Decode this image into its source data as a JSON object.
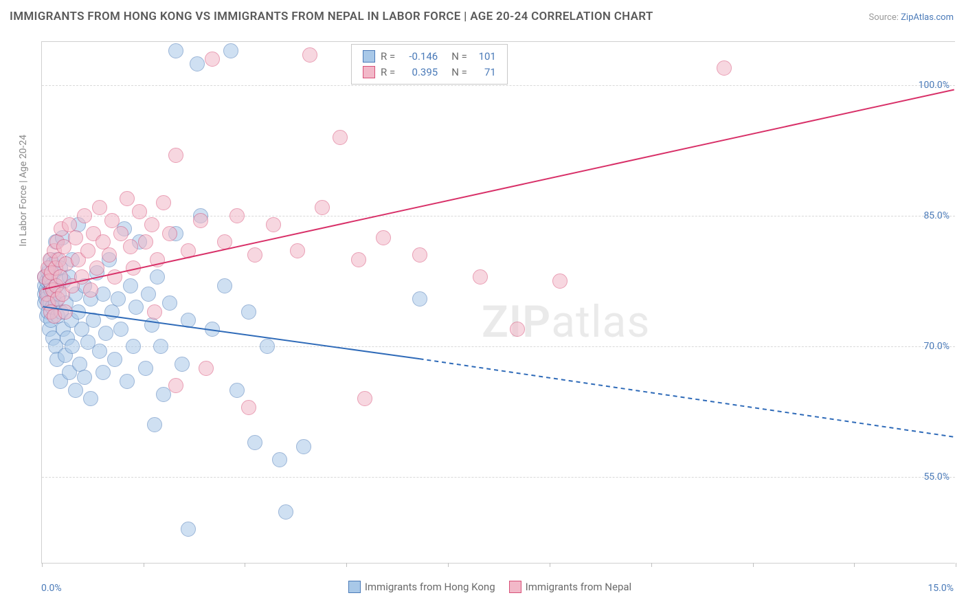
{
  "title": "IMMIGRANTS FROM HONG KONG VS IMMIGRANTS FROM NEPAL IN LABOR FORCE | AGE 20-24 CORRELATION CHART",
  "source_prefix": "Source: ",
  "source_name": "ZipAtlas.com",
  "watermark_bold": "ZIP",
  "watermark_rest": "atlas",
  "chart": {
    "type": "scatter",
    "xlim": [
      0.0,
      15.0
    ],
    "ylim": [
      45.0,
      105.0
    ],
    "x_min_label": "0.0%",
    "x_max_label": "15.0%",
    "y_ticks": [
      55.0,
      70.0,
      85.0,
      100.0
    ],
    "y_tick_labels": [
      "55.0%",
      "70.0%",
      "85.0%",
      "100.0%"
    ],
    "x_tick_positions": [
      0,
      1.67,
      3.33,
      5.0,
      6.67,
      8.33,
      10.0,
      11.67,
      13.33,
      15.0
    ],
    "y_axis_title": "In Labor Force | Age 20-24",
    "background_color": "#ffffff",
    "grid_color": "#d8d8d8",
    "border_color": "#d0d0d0",
    "point_radius": 11,
    "point_border": 1.2,
    "series": [
      {
        "name": "Immigrants from Hong Kong",
        "fill": "#a8c8e8",
        "stroke": "#4a7ab8",
        "opacity": 0.55,
        "R": "-0.146",
        "N": "101",
        "trend": {
          "solid_from": [
            0.0,
            74.5
          ],
          "solid_to": [
            6.2,
            68.5
          ],
          "dash_to": [
            15.0,
            59.5
          ],
          "color": "#2e6ab8",
          "width": 2
        },
        "points": [
          [
            0.05,
            78.0
          ],
          [
            0.05,
            77.0
          ],
          [
            0.05,
            76.0
          ],
          [
            0.05,
            75.0
          ],
          [
            0.07,
            76.5
          ],
          [
            0.07,
            75.5
          ],
          [
            0.08,
            77.5
          ],
          [
            0.08,
            73.5
          ],
          [
            0.1,
            78.5
          ],
          [
            0.1,
            76.0
          ],
          [
            0.1,
            74.0
          ],
          [
            0.12,
            79.0
          ],
          [
            0.12,
            77.5
          ],
          [
            0.12,
            72.0
          ],
          [
            0.13,
            75.0
          ],
          [
            0.14,
            78.0
          ],
          [
            0.15,
            80.0
          ],
          [
            0.15,
            76.5
          ],
          [
            0.15,
            73.0
          ],
          [
            0.16,
            77.0
          ],
          [
            0.17,
            74.5
          ],
          [
            0.18,
            79.5
          ],
          [
            0.18,
            71.0
          ],
          [
            0.2,
            76.0
          ],
          [
            0.2,
            78.5
          ],
          [
            0.22,
            82.0
          ],
          [
            0.22,
            75.0
          ],
          [
            0.23,
            70.0
          ],
          [
            0.24,
            77.0
          ],
          [
            0.25,
            80.0
          ],
          [
            0.25,
            68.5
          ],
          [
            0.26,
            73.5
          ],
          [
            0.28,
            76.0
          ],
          [
            0.3,
            79.0
          ],
          [
            0.3,
            66.0
          ],
          [
            0.32,
            74.0
          ],
          [
            0.34,
            82.5
          ],
          [
            0.35,
            72.0
          ],
          [
            0.36,
            77.5
          ],
          [
            0.38,
            69.0
          ],
          [
            0.4,
            75.0
          ],
          [
            0.42,
            71.0
          ],
          [
            0.45,
            78.0
          ],
          [
            0.45,
            67.0
          ],
          [
            0.48,
            73.0
          ],
          [
            0.5,
            80.0
          ],
          [
            0.5,
            70.0
          ],
          [
            0.55,
            76.0
          ],
          [
            0.55,
            65.0
          ],
          [
            0.6,
            74.0
          ],
          [
            0.6,
            84.0
          ],
          [
            0.62,
            68.0
          ],
          [
            0.65,
            72.0
          ],
          [
            0.7,
            77.0
          ],
          [
            0.7,
            66.5
          ],
          [
            0.75,
            70.5
          ],
          [
            0.8,
            75.5
          ],
          [
            0.8,
            64.0
          ],
          [
            0.85,
            73.0
          ],
          [
            0.9,
            78.5
          ],
          [
            0.95,
            69.5
          ],
          [
            1.0,
            76.0
          ],
          [
            1.0,
            67.0
          ],
          [
            1.05,
            71.5
          ],
          [
            1.1,
            80.0
          ],
          [
            1.15,
            74.0
          ],
          [
            1.2,
            68.5
          ],
          [
            1.25,
            75.5
          ],
          [
            1.3,
            72.0
          ],
          [
            1.35,
            83.5
          ],
          [
            1.4,
            66.0
          ],
          [
            1.45,
            77.0
          ],
          [
            1.5,
            70.0
          ],
          [
            1.55,
            74.5
          ],
          [
            1.6,
            82.0
          ],
          [
            1.7,
            67.5
          ],
          [
            1.75,
            76.0
          ],
          [
            1.8,
            72.5
          ],
          [
            1.85,
            61.0
          ],
          [
            1.9,
            78.0
          ],
          [
            1.95,
            70.0
          ],
          [
            2.0,
            64.5
          ],
          [
            2.1,
            75.0
          ],
          [
            2.2,
            83.0
          ],
          [
            2.2,
            104.0
          ],
          [
            2.3,
            68.0
          ],
          [
            2.4,
            73.0
          ],
          [
            2.4,
            49.0
          ],
          [
            2.55,
            102.5
          ],
          [
            2.6,
            85.0
          ],
          [
            2.8,
            72.0
          ],
          [
            3.0,
            77.0
          ],
          [
            3.1,
            104.0
          ],
          [
            3.2,
            65.0
          ],
          [
            3.4,
            74.0
          ],
          [
            3.5,
            59.0
          ],
          [
            3.7,
            70.0
          ],
          [
            3.9,
            57.0
          ],
          [
            4.0,
            51.0
          ],
          [
            4.3,
            58.5
          ],
          [
            6.2,
            75.5
          ]
        ]
      },
      {
        "name": "Immigrants from Nepal",
        "fill": "#f2b8c8",
        "stroke": "#d85078",
        "opacity": 0.55,
        "R": "0.395",
        "N": "71",
        "trend": {
          "solid_from": [
            0.0,
            76.5
          ],
          "solid_to": [
            15.0,
            99.5
          ],
          "dash_to": null,
          "color": "#d83068",
          "width": 2
        },
        "points": [
          [
            0.05,
            78.0
          ],
          [
            0.08,
            76.0
          ],
          [
            0.1,
            79.0
          ],
          [
            0.1,
            75.0
          ],
          [
            0.12,
            77.5
          ],
          [
            0.14,
            80.0
          ],
          [
            0.15,
            74.0
          ],
          [
            0.16,
            78.5
          ],
          [
            0.18,
            76.5
          ],
          [
            0.2,
            81.0
          ],
          [
            0.2,
            73.5
          ],
          [
            0.22,
            79.0
          ],
          [
            0.24,
            77.0
          ],
          [
            0.25,
            82.0
          ],
          [
            0.26,
            75.5
          ],
          [
            0.28,
            80.0
          ],
          [
            0.3,
            78.0
          ],
          [
            0.32,
            83.5
          ],
          [
            0.34,
            76.0
          ],
          [
            0.36,
            81.5
          ],
          [
            0.38,
            74.0
          ],
          [
            0.4,
            79.5
          ],
          [
            0.45,
            84.0
          ],
          [
            0.5,
            77.0
          ],
          [
            0.55,
            82.5
          ],
          [
            0.6,
            80.0
          ],
          [
            0.65,
            78.0
          ],
          [
            0.7,
            85.0
          ],
          [
            0.75,
            81.0
          ],
          [
            0.8,
            76.5
          ],
          [
            0.85,
            83.0
          ],
          [
            0.9,
            79.0
          ],
          [
            0.95,
            86.0
          ],
          [
            1.0,
            82.0
          ],
          [
            1.1,
            80.5
          ],
          [
            1.15,
            84.5
          ],
          [
            1.2,
            78.0
          ],
          [
            1.3,
            83.0
          ],
          [
            1.4,
            87.0
          ],
          [
            1.45,
            81.5
          ],
          [
            1.5,
            79.0
          ],
          [
            1.6,
            85.5
          ],
          [
            1.7,
            82.0
          ],
          [
            1.8,
            84.0
          ],
          [
            1.85,
            74.0
          ],
          [
            1.9,
            80.0
          ],
          [
            2.0,
            86.5
          ],
          [
            2.1,
            83.0
          ],
          [
            2.2,
            65.5
          ],
          [
            2.2,
            92.0
          ],
          [
            2.4,
            81.0
          ],
          [
            2.6,
            84.5
          ],
          [
            2.7,
            67.5
          ],
          [
            2.8,
            103.0
          ],
          [
            3.0,
            82.0
          ],
          [
            3.2,
            85.0
          ],
          [
            3.4,
            63.0
          ],
          [
            3.5,
            80.5
          ],
          [
            3.8,
            84.0
          ],
          [
            4.2,
            81.0
          ],
          [
            4.4,
            103.5
          ],
          [
            4.6,
            86.0
          ],
          [
            4.9,
            94.0
          ],
          [
            5.2,
            80.0
          ],
          [
            5.3,
            64.0
          ],
          [
            5.6,
            82.5
          ],
          [
            6.2,
            80.5
          ],
          [
            7.2,
            78.0
          ],
          [
            7.8,
            72.0
          ],
          [
            8.5,
            77.5
          ],
          [
            11.2,
            102.0
          ]
        ]
      }
    ]
  },
  "bottom_legend": {
    "items": [
      {
        "label": "Immigrants from Hong Kong",
        "fill": "#a8c8e8",
        "stroke": "#4a7ab8"
      },
      {
        "label": "Immigrants from Nepal",
        "fill": "#f2b8c8",
        "stroke": "#d85078"
      }
    ]
  }
}
